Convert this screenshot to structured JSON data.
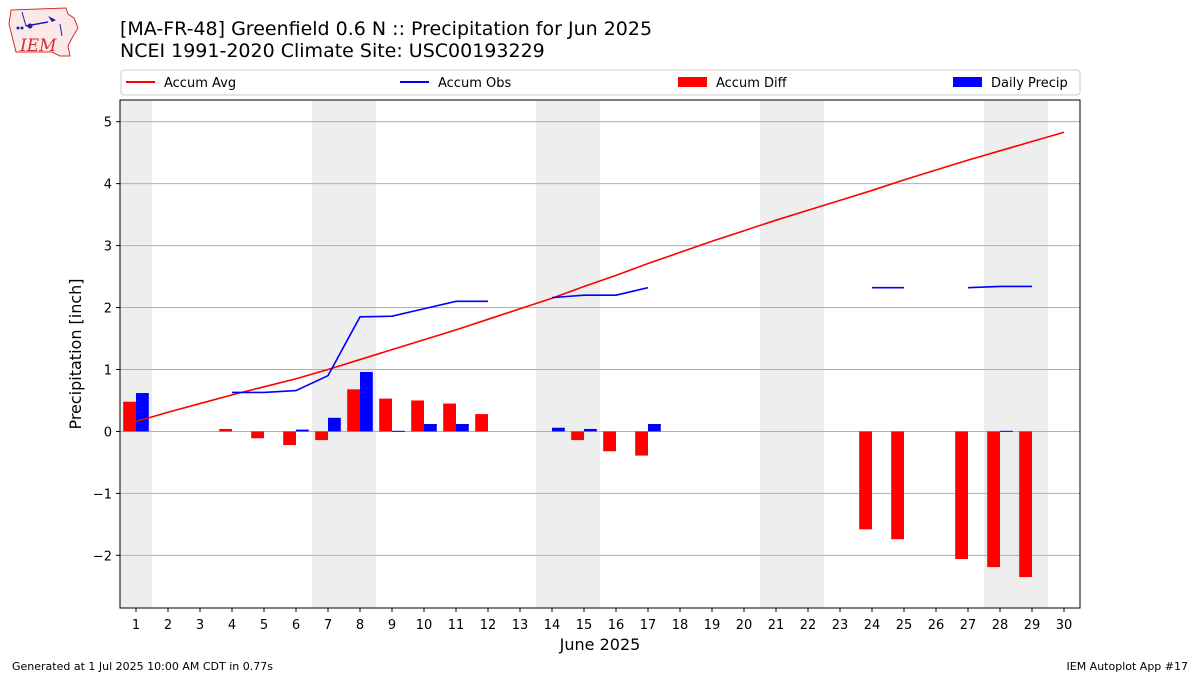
{
  "header": {
    "title_line1": "[MA-FR-48] Greenfield 0.6 N :: Precipitation for Jun 2025",
    "title_line2": "NCEI 1991-2020 Climate Site: USC00193229",
    "logo_text": "IEM"
  },
  "footer": {
    "left": "Generated at 1 Jul 2025 10:00 AM CDT in 0.77s",
    "right": "IEM Autoplot App #17"
  },
  "colors": {
    "accum_avg": "#ff0000",
    "accum_obs": "#0000ff",
    "accum_diff": "#ff0000",
    "daily_precip": "#0000ff",
    "weekend_band": "#eeeeee",
    "grid": "#b0b0b0"
  },
  "chart_data": {
    "type": "bar",
    "xlabel": "June 2025",
    "ylabel": "Precipitation [inch]",
    "xlim": [
      0.5,
      30.5
    ],
    "ylim": [
      -2.85,
      5.35
    ],
    "x_ticks": [
      1,
      2,
      3,
      4,
      5,
      6,
      7,
      8,
      9,
      10,
      11,
      12,
      13,
      14,
      15,
      16,
      17,
      18,
      19,
      20,
      21,
      22,
      23,
      24,
      25,
      26,
      27,
      28,
      29,
      30
    ],
    "y_ticks": [
      -2,
      -1,
      0,
      1,
      2,
      3,
      4,
      5
    ],
    "y_tick_labels": [
      "−2",
      "−1",
      "0",
      "1",
      "2",
      "3",
      "4",
      "5"
    ],
    "grid": "horizontal",
    "legend_position": "top",
    "weekend_days": [
      1,
      7,
      8,
      14,
      15,
      21,
      22,
      28,
      29
    ],
    "legend": [
      {
        "label": "Accum Avg",
        "kind": "line",
        "color": "#ff0000"
      },
      {
        "label": "Accum Obs",
        "kind": "line",
        "color": "#0000ff"
      },
      {
        "label": "Accum Diff",
        "kind": "bar",
        "color": "#ff0000"
      },
      {
        "label": "Daily Precip",
        "kind": "bar",
        "color": "#0000ff"
      }
    ],
    "series": [
      {
        "name": "Accum Avg",
        "type": "line",
        "x": [
          1,
          2,
          3,
          4,
          5,
          6,
          7,
          8,
          9,
          10,
          11,
          12,
          13,
          14,
          15,
          16,
          17,
          18,
          19,
          20,
          21,
          22,
          23,
          24,
          25,
          26,
          27,
          28,
          29,
          30
        ],
        "values": [
          0.16,
          0.31,
          0.45,
          0.59,
          0.72,
          0.85,
          1.0,
          1.16,
          1.32,
          1.48,
          1.64,
          1.81,
          1.98,
          2.15,
          2.34,
          2.52,
          2.71,
          2.89,
          3.07,
          3.24,
          3.41,
          3.57,
          3.73,
          3.89,
          4.06,
          4.22,
          4.38,
          4.53,
          4.68,
          4.83
        ]
      },
      {
        "name": "Accum Obs",
        "type": "line",
        "segments": [
          {
            "x": [
              4,
              5,
              6,
              7,
              8,
              9,
              10,
              11,
              12
            ],
            "values": [
              0.63,
              0.63,
              0.66,
              0.9,
              1.85,
              1.86,
              1.98,
              2.1,
              2.1
            ]
          },
          {
            "x": [
              14,
              15,
              16,
              17
            ],
            "values": [
              2.16,
              2.2,
              2.2,
              2.32
            ]
          },
          {
            "x": [
              24,
              25
            ],
            "values": [
              2.32,
              2.32
            ]
          },
          {
            "x": [
              27,
              28,
              29
            ],
            "values": [
              2.32,
              2.34,
              2.34
            ]
          }
        ]
      },
      {
        "name": "Accum Diff",
        "type": "bar",
        "x": [
          1,
          4,
          5,
          6,
          7,
          8,
          9,
          10,
          11,
          12,
          14,
          15,
          16,
          17,
          24,
          25,
          27,
          28,
          29
        ],
        "values": [
          0.48,
          0.04,
          -0.11,
          -0.22,
          -0.14,
          0.68,
          0.53,
          0.5,
          0.45,
          0.28,
          0.0,
          -0.14,
          -0.32,
          -0.39,
          -1.58,
          -1.74,
          -2.06,
          -2.19,
          -2.35
        ]
      },
      {
        "name": "Daily Precip",
        "type": "bar",
        "x": [
          1,
          6,
          7,
          8,
          9,
          10,
          11,
          14,
          15,
          17,
          28
        ],
        "values": [
          0.62,
          0.03,
          0.22,
          0.96,
          0.01,
          0.12,
          0.12,
          0.06,
          0.04,
          0.12,
          0.01
        ]
      }
    ]
  }
}
